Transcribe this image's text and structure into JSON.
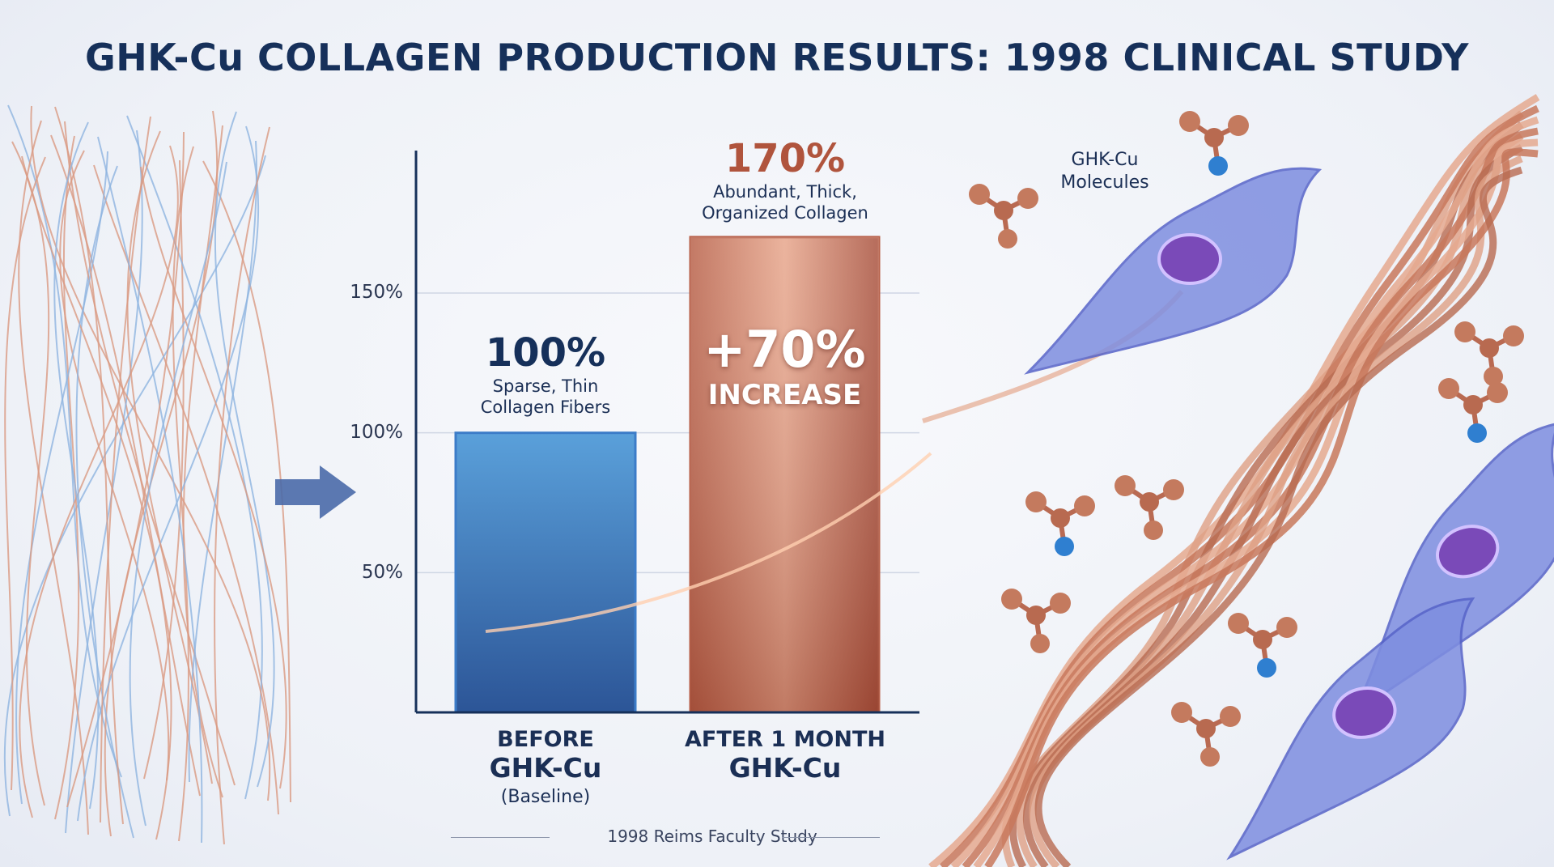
{
  "title": "GHK-Cu COLLAGEN PRODUCTION RESULTS: 1998 CLINICAL STUDY",
  "molecule_label": "GHK-Cu Molecules",
  "source": "1998 Reims Faculty Study",
  "chart_data": {
    "type": "bar",
    "title": "GHK-Cu COLLAGEN PRODUCTION RESULTS: 1998 CLINICAL STUDY",
    "categories": [
      {
        "line1": "BEFORE",
        "line2": "GHK-Cu",
        "line3": "(Baseline)"
      },
      {
        "line1": "AFTER 1 MONTH",
        "line2": "GHK-Cu",
        "line3": ""
      }
    ],
    "values": [
      100,
      170
    ],
    "data_labels": [
      {
        "value": "100%",
        "desc1": "Sparse, Thin",
        "desc2": "Collagen Fibers"
      },
      {
        "value": "170%",
        "desc1": "Abundant, Thick,",
        "desc2": "Organized Collagen"
      }
    ],
    "annotation": {
      "line1": "+70%",
      "line2": "INCREASE"
    },
    "yticks": [
      "50%",
      "100%",
      "150%"
    ],
    "ytick_values": [
      50,
      100,
      150
    ],
    "ylim": [
      0,
      200
    ],
    "grid": true,
    "colors": {
      "before": "#3f7fc6",
      "after": "#c9785e",
      "text": "#16305a",
      "after_text": "#b0543d"
    }
  }
}
